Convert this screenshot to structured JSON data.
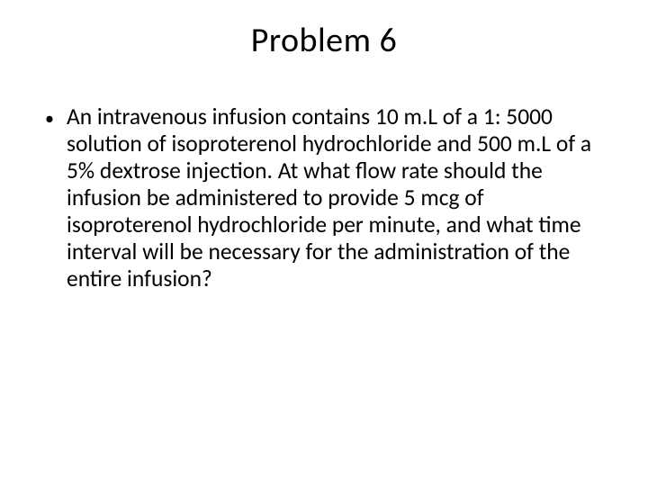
{
  "slide": {
    "title": "Problem 6",
    "bullets": [
      {
        "marker": "•",
        "text": "An intravenous infusion contains 10 m.L of a 1: 5000 solution of isoproterenol hydrochloride and 500 m.L of a 5% dextrose injection. At what flow rate should the infusion be administered to provide 5 mcg of isoproterenol hydrochloride per minute, and what time interval will be necessary for the administration of the entire infusion?"
      }
    ],
    "background_color": "#ffffff",
    "text_color": "#000000",
    "title_fontsize": 38,
    "body_fontsize": 25.5
  }
}
